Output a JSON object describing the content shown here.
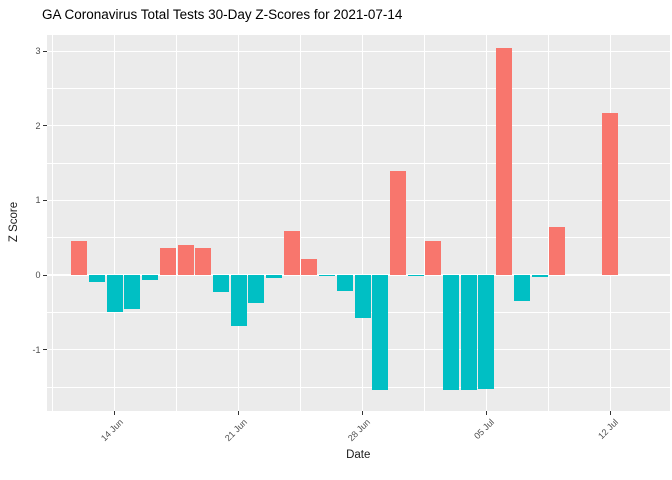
{
  "title": "GA Coronavirus Total Tests 30-Day Z-Scores for 2021-07-14",
  "chart_data": {
    "type": "bar",
    "title": "GA Coronavirus Total Tests 30-Day Z-Scores for 2021-07-14",
    "xlabel": "Date",
    "ylabel": "Z Score",
    "x": [
      "2021-06-12",
      "2021-06-13",
      "2021-06-14",
      "2021-06-15",
      "2021-06-16",
      "2021-06-17",
      "2021-06-18",
      "2021-06-19",
      "2021-06-20",
      "2021-06-21",
      "2021-06-22",
      "2021-06-23",
      "2021-06-24",
      "2021-06-25",
      "2021-06-26",
      "2021-06-27",
      "2021-06-28",
      "2021-06-29",
      "2021-06-30",
      "2021-07-01",
      "2021-07-02",
      "2021-07-03",
      "2021-07-04",
      "2021-07-05",
      "2021-07-06",
      "2021-07-07",
      "2021-07-08",
      "2021-07-09",
      "2021-07-10",
      "2021-07-11",
      "2021-07-12",
      "2021-07-13",
      "2021-07-14"
    ],
    "values": [
      0.45,
      -0.1,
      -0.49,
      -0.46,
      -0.07,
      0.36,
      0.4,
      0.36,
      -0.23,
      -0.68,
      -0.37,
      -0.04,
      0.59,
      0.22,
      -0.02,
      -0.21,
      -0.57,
      -1.54,
      1.39,
      -0.02,
      0.46,
      -1.54,
      -1.54,
      -1.53,
      3.04,
      -0.35,
      -0.03,
      0.64,
      0,
      0,
      2.17,
      0,
      0
    ],
    "x_ticks": [
      {
        "index": 2,
        "label": "14 Jun"
      },
      {
        "index": 9,
        "label": "21 Jun"
      },
      {
        "index": 16,
        "label": "28 Jun"
      },
      {
        "index": 23,
        "label": "05 Jul"
      },
      {
        "index": 30,
        "label": "12 Jul"
      }
    ],
    "y_ticks": [
      3,
      2,
      1,
      0,
      -1
    ],
    "y_minor_ticks": [
      2.5,
      1.5,
      0.5,
      -0.5,
      -1.5
    ],
    "ylim": [
      -1.82,
      3.22
    ],
    "grid": "on",
    "legend_position": "none",
    "colors": {
      "positive_bar": "#F8766D",
      "negative_bar": "#00BFC4",
      "panel_background": "#EBEBEB",
      "grid_color": "#FFFFFF",
      "tick_text": "#4d4d4d",
      "axis_title_text": "#1a1a1a",
      "title_text": "#000000"
    }
  }
}
